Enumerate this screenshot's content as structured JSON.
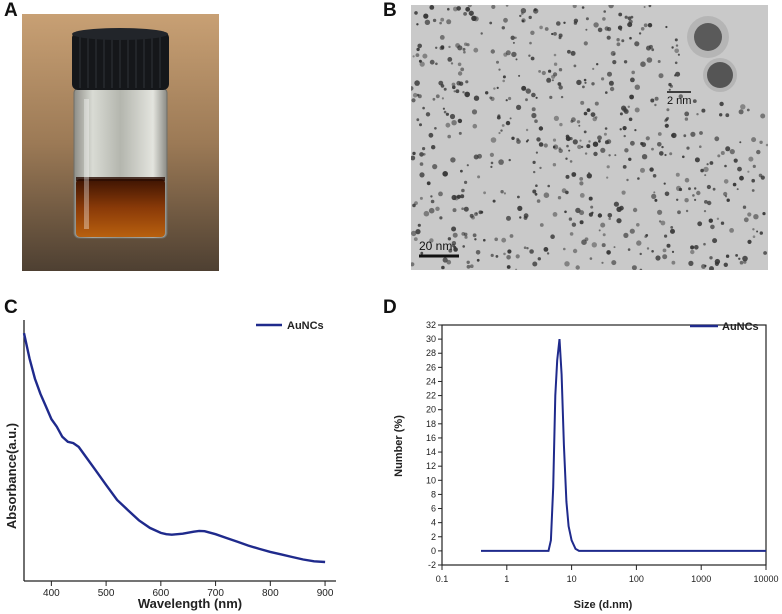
{
  "panels": {
    "a": "A",
    "b": "B",
    "c": "C",
    "d": "D"
  },
  "tem": {
    "scale_main": "20 nm",
    "scale_inset": "2 nm"
  },
  "colors": {
    "series": "#1f2a8c",
    "axis": "#222222",
    "liquid": "#7a2e06",
    "cap": "#15171a"
  },
  "chart_data": [
    {
      "type": "line",
      "title": "",
      "xlabel": "Wavelength (nm)",
      "ylabel": "Absorbance(a.u.)",
      "xlim": [
        350,
        920
      ],
      "ylim": [
        0,
        1
      ],
      "xticks": [
        400,
        500,
        600,
        700,
        800,
        900
      ],
      "y_tick_labels": false,
      "legend": "top-right",
      "series": [
        {
          "name": "AuNCs",
          "x": [
            350,
            360,
            370,
            380,
            390,
            400,
            410,
            420,
            430,
            440,
            450,
            460,
            480,
            500,
            520,
            540,
            560,
            580,
            600,
            610,
            620,
            640,
            660,
            670,
            680,
            700,
            720,
            740,
            760,
            780,
            800,
            820,
            840,
            860,
            880,
            900
          ],
          "y": [
            0.98,
            0.88,
            0.8,
            0.74,
            0.69,
            0.64,
            0.61,
            0.57,
            0.55,
            0.545,
            0.53,
            0.5,
            0.44,
            0.38,
            0.32,
            0.28,
            0.24,
            0.21,
            0.19,
            0.185,
            0.183,
            0.187,
            0.195,
            0.198,
            0.197,
            0.185,
            0.17,
            0.155,
            0.14,
            0.127,
            0.115,
            0.105,
            0.095,
            0.085,
            0.078,
            0.075
          ]
        }
      ]
    },
    {
      "type": "line",
      "title": "",
      "xlabel": "Size (d.nm)",
      "ylabel": "Number (%)",
      "xscale": "log",
      "xlim": [
        0.1,
        10000
      ],
      "ylim": [
        -2,
        32
      ],
      "xticks": [
        0.1,
        1,
        10,
        100,
        1000,
        10000
      ],
      "xtick_labels": [
        "0.1",
        "1",
        "10",
        "100",
        "1000",
        "10000"
      ],
      "yticks": [
        -2,
        0,
        2,
        4,
        6,
        8,
        10,
        12,
        14,
        16,
        18,
        20,
        22,
        24,
        26,
        28,
        30,
        32
      ],
      "legend": "top-right",
      "series": [
        {
          "name": "AuNCs",
          "x": [
            0.4,
            4.4,
            4.8,
            5.2,
            5.6,
            6.0,
            6.5,
            7.0,
            7.6,
            8.3,
            9.0,
            10.0,
            11.5,
            13.0,
            10000
          ],
          "y": [
            0,
            0,
            1.5,
            9,
            22,
            27,
            30,
            25,
            15,
            7,
            3.5,
            1.5,
            0.3,
            0,
            0
          ]
        }
      ]
    }
  ]
}
